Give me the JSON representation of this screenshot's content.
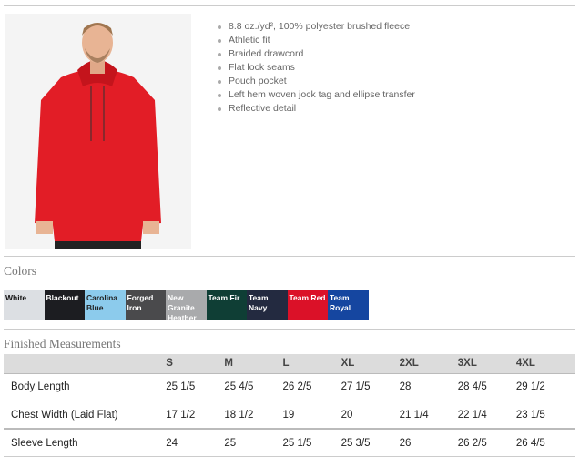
{
  "product": {
    "image": "red-hoodie-model-photo",
    "color": "#e21d26"
  },
  "features": [
    "8.8 oz./yd², 100% polyester brushed fleece",
    "Athletic fit",
    "Braided drawcord",
    "Flat lock seams",
    "Pouch pocket",
    "Left hem woven jock tag and ellipse transfer",
    "Reflective detail"
  ],
  "colors_heading": "Colors",
  "colors": [
    {
      "name": "White",
      "hex": "#dcdfe3",
      "text": "#111"
    },
    {
      "name": "Blackout",
      "hex": "#1c1d21",
      "text": "#fff"
    },
    {
      "name": "Carolina Blue",
      "hex": "#8ccbec",
      "text": "#222"
    },
    {
      "name": "Forged Iron",
      "hex": "#4a4a4c",
      "text": "#fff"
    },
    {
      "name": "New Granite Heather",
      "hex": "#a9aaac",
      "text": "#fff"
    },
    {
      "name": "Team Fir",
      "hex": "#0f3e35",
      "text": "#fff"
    },
    {
      "name": "Team Navy",
      "hex": "#232a40",
      "text": "#fff"
    },
    {
      "name": "Team Red",
      "hex": "#db1128",
      "text": "#fff"
    },
    {
      "name": "Team Royal",
      "hex": "#1546a0",
      "text": "#fff"
    }
  ],
  "measurements": {
    "heading": "Finished Measurements",
    "columns": [
      "",
      "S",
      "M",
      "L",
      "XL",
      "2XL",
      "3XL",
      "4XL"
    ],
    "rows": [
      [
        "Body Length",
        "25 1/5",
        "25 4/5",
        "26 2/5",
        "27 1/5",
        "28",
        "28 4/5",
        "29 1/2"
      ],
      [
        "Chest Width (Laid Flat)",
        "17 1/2",
        "18 1/2",
        "19",
        "20",
        "21 1/4",
        "22 1/4",
        "23 1/5"
      ],
      [
        "Sleeve Length",
        "24",
        "25",
        "25 1/5",
        "25 3/5",
        "26",
        "26 2/5",
        "26 4/5"
      ]
    ]
  }
}
